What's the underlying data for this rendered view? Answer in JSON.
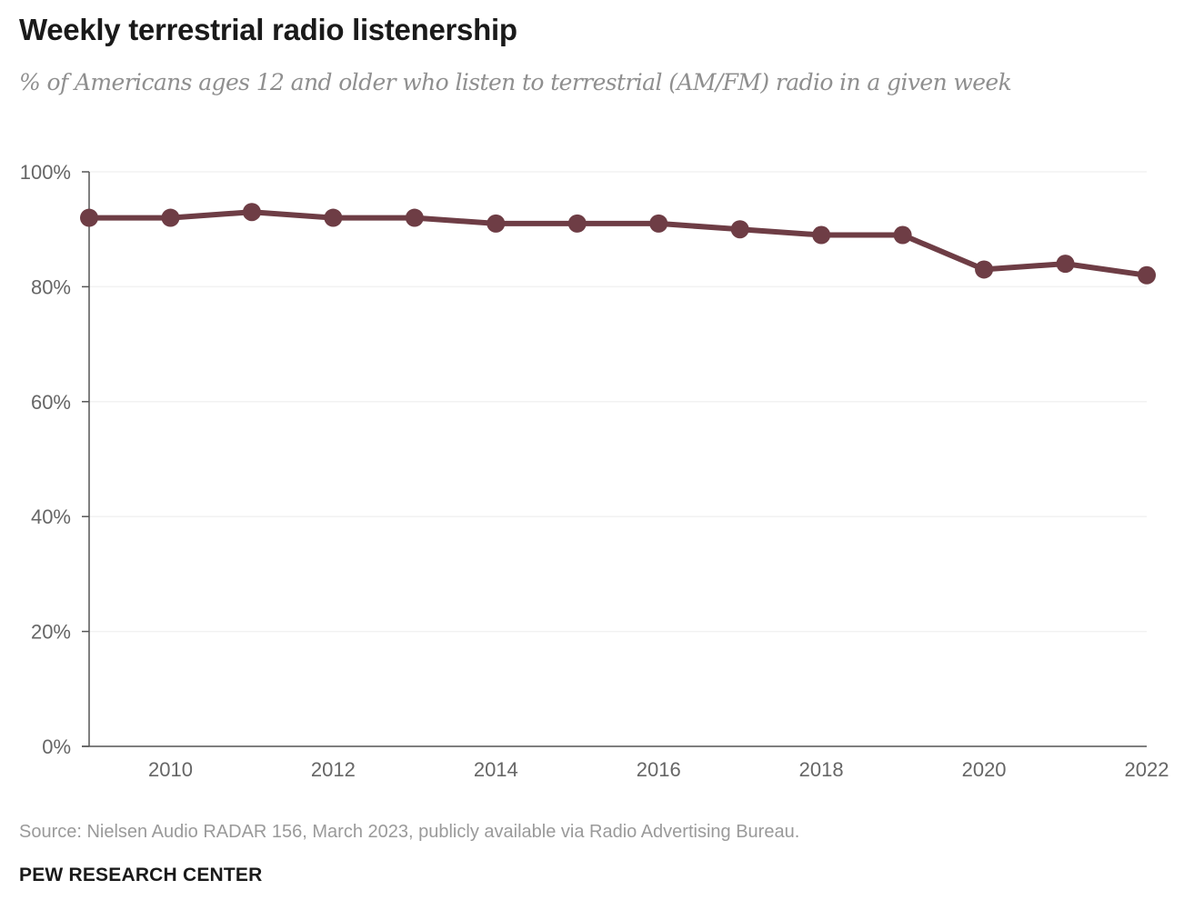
{
  "page": {
    "title": "Weekly terrestrial radio listenership",
    "subtitle": "% of Americans ages 12 and older who listen to terrestrial (AM/FM) radio in a given week",
    "source": "Source: Nielsen Audio RADAR 156, March 2023, publicly available via Radio Advertising Bureau.",
    "organization": "PEW RESEARCH CENTER"
  },
  "colors": {
    "line": "#6e3d45",
    "axis": "#555555",
    "grid": "#f2f2f2"
  },
  "chart_data": {
    "type": "line",
    "title": "Weekly terrestrial radio listenership",
    "subtitle": "% of Americans ages 12 and older who listen to terrestrial (AM/FM) radio in a given week",
    "xlabel": "",
    "ylabel": "",
    "x": [
      2009,
      2010,
      2011,
      2012,
      2013,
      2014,
      2015,
      2016,
      2017,
      2018,
      2019,
      2020,
      2021,
      2022
    ],
    "series": [
      {
        "values": [
          92,
          92,
          93,
          92,
          92,
          91,
          91,
          91,
          90,
          89,
          89,
          83,
          84,
          82
        ]
      }
    ],
    "xlim": [
      2009,
      2022
    ],
    "ylim": [
      0,
      100
    ],
    "x_ticks": [
      2010,
      2012,
      2014,
      2016,
      2018,
      2020,
      2022
    ],
    "x_tick_labels": [
      "2010",
      "2012",
      "2014",
      "2016",
      "2018",
      "2020",
      "2022"
    ],
    "y_ticks": [
      0,
      20,
      40,
      60,
      80,
      100
    ],
    "y_tick_labels": [
      "0%",
      "20%",
      "40%",
      "60%",
      "80%",
      "100%"
    ],
    "grid": true,
    "legend": "none"
  }
}
